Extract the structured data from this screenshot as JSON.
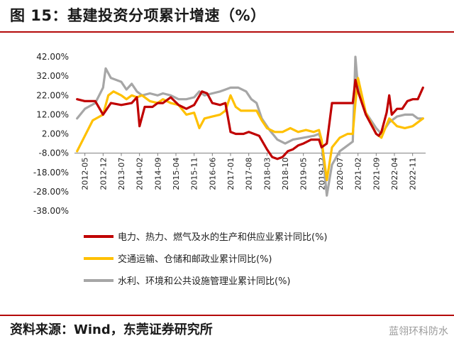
{
  "header": {
    "title": "图 15：基建投资分项累计增速（%）"
  },
  "footer": {
    "source": "资料来源：Wind，东莞证券研究所",
    "watermark": "蓝翎环科防水"
  },
  "chart_data": {
    "type": "line",
    "title": "",
    "xlabel": "",
    "ylabel": "",
    "ylim": [
      -38,
      42
    ],
    "yticks": [
      "42.00%",
      "32.00%",
      "22.00%",
      "12.00%",
      "2.00%",
      "-8.00%",
      "-18.00%",
      "-28.00%",
      "-38.00%"
    ],
    "ytick_values": [
      42,
      32,
      22,
      12,
      2,
      -8,
      -18,
      -28,
      -38
    ],
    "x_range": [
      "2012-01",
      "2023-04"
    ],
    "xticks": [
      "2012-05",
      "2012-12",
      "2013-07",
      "2014-02",
      "2014-09",
      "2015-04",
      "2015-11",
      "2016-06",
      "2017-01",
      "2017-08",
      "2018-03",
      "2018-10",
      "2019-05",
      "2019-12",
      "2020-07",
      "2021-02",
      "2021-09",
      "2022-04",
      "2022-11"
    ],
    "grid": false,
    "legend_position": "bottom",
    "series": [
      {
        "name": "电力、热力、燃气及水的生产和供应业累计同比(%)",
        "color": "#c00000",
        "points": [
          [
            "2012-02",
            20
          ],
          [
            "2012-05",
            19
          ],
          [
            "2012-09",
            19
          ],
          [
            "2012-12",
            12
          ],
          [
            "2013-03",
            18
          ],
          [
            "2013-07",
            17
          ],
          [
            "2013-11",
            18
          ],
          [
            "2014-01",
            21
          ],
          [
            "2014-02",
            6
          ],
          [
            "2014-04",
            16
          ],
          [
            "2014-07",
            16
          ],
          [
            "2014-09",
            18
          ],
          [
            "2014-11",
            18
          ],
          [
            "2015-02",
            21
          ],
          [
            "2015-05",
            17
          ],
          [
            "2015-08",
            15
          ],
          [
            "2015-11",
            17
          ],
          [
            "2016-02",
            24
          ],
          [
            "2016-04",
            23
          ],
          [
            "2016-06",
            18
          ],
          [
            "2016-09",
            17
          ],
          [
            "2016-11",
            18
          ],
          [
            "2017-01",
            3
          ],
          [
            "2017-03",
            2
          ],
          [
            "2017-06",
            2
          ],
          [
            "2017-08",
            3
          ],
          [
            "2017-10",
            2
          ],
          [
            "2017-12",
            1
          ],
          [
            "2018-03",
            -6
          ],
          [
            "2018-05",
            -10
          ],
          [
            "2018-07",
            -11
          ],
          [
            "2018-09",
            -10
          ],
          [
            "2018-11",
            -7
          ],
          [
            "2019-01",
            -6
          ],
          [
            "2019-03",
            -4
          ],
          [
            "2019-05",
            -3
          ],
          [
            "2019-08",
            -1
          ],
          [
            "2019-11",
            -1
          ],
          [
            "2019-12",
            -5
          ],
          [
            "2020-02",
            -3
          ],
          [
            "2020-04",
            18
          ],
          [
            "2020-07",
            18
          ],
          [
            "2020-10",
            18
          ],
          [
            "2020-12",
            18
          ],
          [
            "2021-01",
            30
          ],
          [
            "2021-02",
            24
          ],
          [
            "2021-05",
            12
          ],
          [
            "2021-09",
            2
          ],
          [
            "2021-10",
            1
          ],
          [
            "2021-11",
            3
          ],
          [
            "2022-01",
            13
          ],
          [
            "2022-02",
            22
          ],
          [
            "2022-03",
            12
          ],
          [
            "2022-05",
            15
          ],
          [
            "2022-07",
            15
          ],
          [
            "2022-09",
            19
          ],
          [
            "2022-11",
            20
          ],
          [
            "2023-01",
            20
          ],
          [
            "2023-03",
            26
          ]
        ]
      },
      {
        "name": "交通运输、仓储和邮政业累计同比(%)",
        "color": "#ffc000",
        "points": [
          [
            "2012-02",
            -7
          ],
          [
            "2012-05",
            1
          ],
          [
            "2012-08",
            9
          ],
          [
            "2012-12",
            12
          ],
          [
            "2013-02",
            22
          ],
          [
            "2013-04",
            24
          ],
          [
            "2013-07",
            22
          ],
          [
            "2013-09",
            20
          ],
          [
            "2013-11",
            22
          ],
          [
            "2014-01",
            21
          ],
          [
            "2014-03",
            22
          ],
          [
            "2014-06",
            19
          ],
          [
            "2014-09",
            18
          ],
          [
            "2014-11",
            20
          ],
          [
            "2015-02",
            18
          ],
          [
            "2015-05",
            17
          ],
          [
            "2015-08",
            12
          ],
          [
            "2015-11",
            13
          ],
          [
            "2016-01",
            5
          ],
          [
            "2016-03",
            10
          ],
          [
            "2016-06",
            11
          ],
          [
            "2016-09",
            12
          ],
          [
            "2016-11",
            14
          ],
          [
            "2017-01",
            22
          ],
          [
            "2017-03",
            16
          ],
          [
            "2017-05",
            14
          ],
          [
            "2017-08",
            14
          ],
          [
            "2017-11",
            14
          ],
          [
            "2018-01",
            9
          ],
          [
            "2018-03",
            5
          ],
          [
            "2018-06",
            3
          ],
          [
            "2018-09",
            3
          ],
          [
            "2018-12",
            5
          ],
          [
            "2019-03",
            3
          ],
          [
            "2019-06",
            4
          ],
          [
            "2019-09",
            3
          ],
          [
            "2019-11",
            4
          ],
          [
            "2019-12",
            -1
          ],
          [
            "2020-02",
            -22
          ],
          [
            "2020-04",
            -5
          ],
          [
            "2020-07",
            0
          ],
          [
            "2020-10",
            2
          ],
          [
            "2020-12",
            2
          ],
          [
            "2021-01",
            18
          ],
          [
            "2021-02",
            31
          ],
          [
            "2021-05",
            13
          ],
          [
            "2021-09",
            2
          ],
          [
            "2021-11",
            0
          ],
          [
            "2022-02",
            10
          ],
          [
            "2022-05",
            6
          ],
          [
            "2022-08",
            5
          ],
          [
            "2022-11",
            6
          ],
          [
            "2023-03",
            10
          ]
        ]
      },
      {
        "name": "水利、环境和公共设施管理业累计同比(%)",
        "color": "#a6a6a6",
        "points": [
          [
            "2012-02",
            10
          ],
          [
            "2012-05",
            15
          ],
          [
            "2012-09",
            18
          ],
          [
            "2012-12",
            26
          ],
          [
            "2013-01",
            36
          ],
          [
            "2013-03",
            31
          ],
          [
            "2013-05",
            30
          ],
          [
            "2013-07",
            29
          ],
          [
            "2013-09",
            25
          ],
          [
            "2013-11",
            28
          ],
          [
            "2014-01",
            24
          ],
          [
            "2014-03",
            22
          ],
          [
            "2014-06",
            23
          ],
          [
            "2014-09",
            22
          ],
          [
            "2014-11",
            23
          ],
          [
            "2015-02",
            22
          ],
          [
            "2015-05",
            20
          ],
          [
            "2015-08",
            20
          ],
          [
            "2015-11",
            21
          ],
          [
            "2016-01",
            24
          ],
          [
            "2016-03",
            22
          ],
          [
            "2016-06",
            23
          ],
          [
            "2016-09",
            24
          ],
          [
            "2016-11",
            25
          ],
          [
            "2017-01",
            26
          ],
          [
            "2017-04",
            26
          ],
          [
            "2017-07",
            24
          ],
          [
            "2017-09",
            20
          ],
          [
            "2017-11",
            18
          ],
          [
            "2018-01",
            10
          ],
          [
            "2018-04",
            4
          ],
          [
            "2018-07",
            -1
          ],
          [
            "2018-10",
            -3
          ],
          [
            "2019-01",
            -1
          ],
          [
            "2019-05",
            0
          ],
          [
            "2019-09",
            1
          ],
          [
            "2019-11",
            2
          ],
          [
            "2019-12",
            -2
          ],
          [
            "2020-02",
            -30
          ],
          [
            "2020-04",
            -14
          ],
          [
            "2020-07",
            -7
          ],
          [
            "2020-10",
            -4
          ],
          [
            "2020-12",
            -2
          ],
          [
            "2021-01",
            42
          ],
          [
            "2021-02",
            26
          ],
          [
            "2021-05",
            13
          ],
          [
            "2021-09",
            5
          ],
          [
            "2021-11",
            2
          ],
          [
            "2022-02",
            8
          ],
          [
            "2022-05",
            11
          ],
          [
            "2022-08",
            12
          ],
          [
            "2022-11",
            12
          ],
          [
            "2023-01",
            10
          ],
          [
            "2023-03",
            10
          ]
        ]
      }
    ]
  }
}
